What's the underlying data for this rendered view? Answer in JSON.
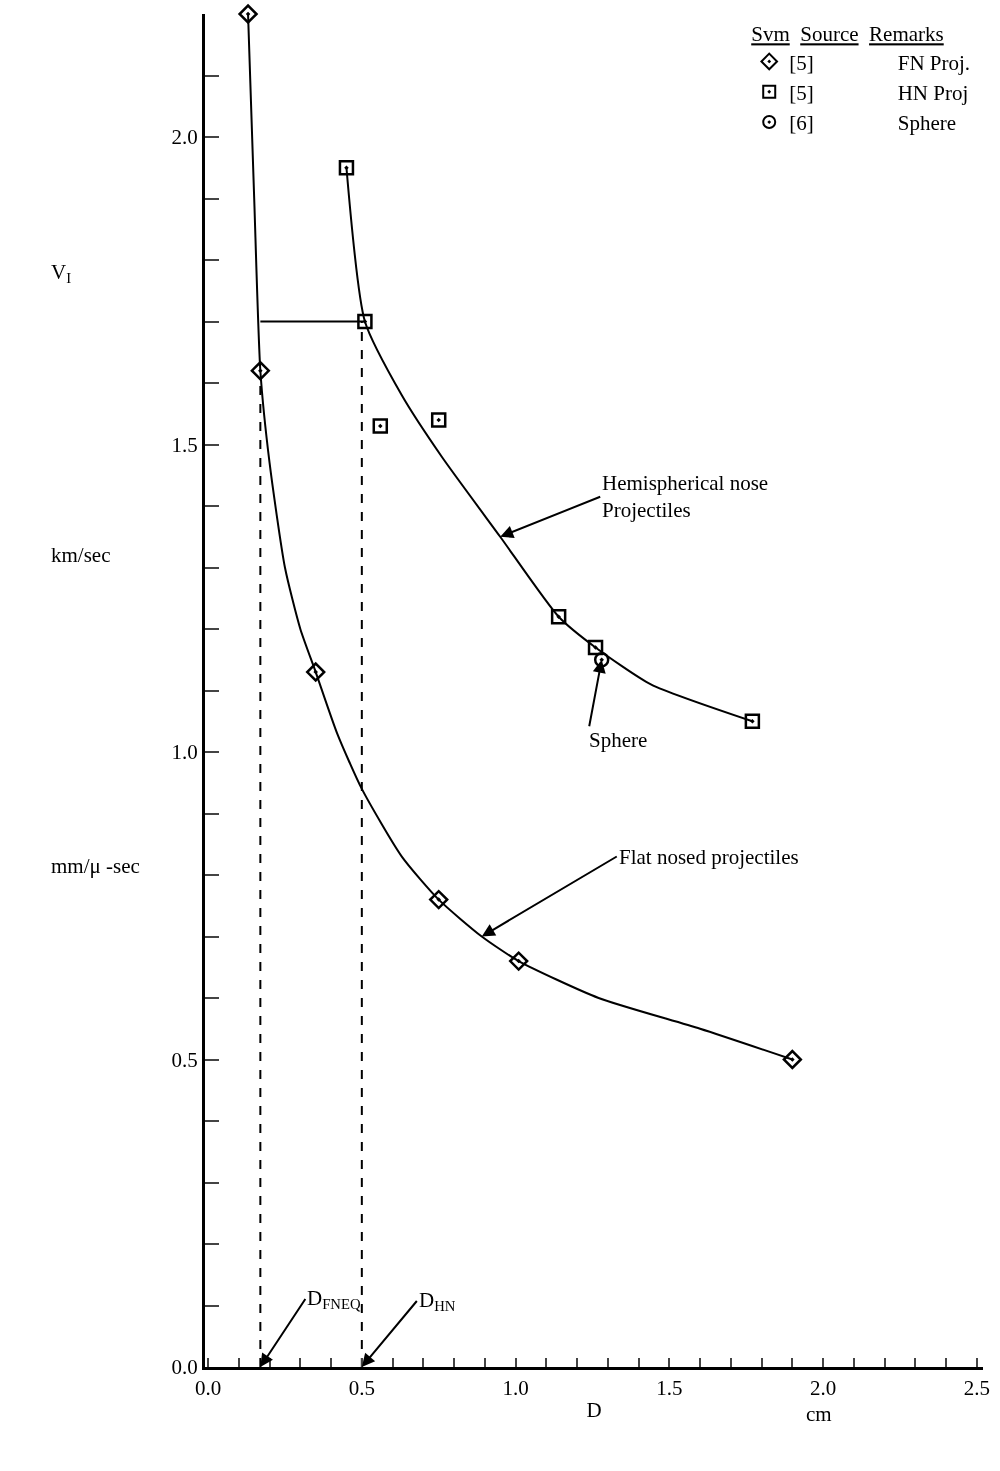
{
  "chart_data": {
    "type": "scatter",
    "xlabel": "D",
    "ylabel": "V$_{I}$",
    "legend_title": "Svm   Source   Remarks",
    "xlim": [
      -0.01,
      2.52
    ],
    "ylim": [
      0,
      2.2
    ],
    "xticks": [
      {
        "value": 0,
        "label": "0.0"
      },
      {
        "value": 0.1,
        "label": null
      },
      {
        "value": 0.2,
        "label": null
      },
      {
        "value": 0.3,
        "label": null
      },
      {
        "value": 0.4,
        "label": null
      },
      {
        "value": 0.5,
        "label": "0.5"
      },
      {
        "value": 0.6,
        "label": null
      },
      {
        "value": 0.7,
        "label": null
      },
      {
        "value": 0.8,
        "label": null
      },
      {
        "value": 0.9,
        "label": null
      },
      {
        "value": 1,
        "label": "1.0"
      },
      {
        "value": 1.1,
        "label": null
      },
      {
        "value": 1.2,
        "label": null
      },
      {
        "value": 1.3,
        "label": null
      },
      {
        "value": 1.4,
        "label": null
      },
      {
        "value": 1.5,
        "label": "1.5"
      },
      {
        "value": 1.6,
        "label": null
      },
      {
        "value": 1.7,
        "label": null
      },
      {
        "value": 1.8,
        "label": null
      },
      {
        "value": 1.9,
        "label": null
      },
      {
        "value": 2,
        "label": "2.0"
      },
      {
        "value": 2.1,
        "label": null
      },
      {
        "value": 2.2,
        "label": null
      },
      {
        "value": 2.3,
        "label": null
      },
      {
        "value": 2.4,
        "label": null
      },
      {
        "value": 2.5,
        "label": "2.5"
      }
    ],
    "yticks": [
      {
        "value": 0,
        "label": "0.0"
      },
      {
        "value": 0.1,
        "label": null
      },
      {
        "value": 0.2,
        "label": null
      },
      {
        "value": 0.3,
        "label": null
      },
      {
        "value": 0.4,
        "label": null
      },
      {
        "value": 0.5,
        "label": "0.5"
      },
      {
        "value": 0.6,
        "label": null
      },
      {
        "value": 0.7,
        "label": null
      },
      {
        "value": 0.8,
        "label": null
      },
      {
        "value": 0.9,
        "label": null
      },
      {
        "value": 1,
        "label": "1.0"
      },
      {
        "value": 1.1,
        "label": null
      },
      {
        "value": 1.2,
        "label": null
      },
      {
        "value": 1.3,
        "label": null
      },
      {
        "value": 1.4,
        "label": null
      },
      {
        "value": 1.5,
        "label": "1.5"
      },
      {
        "value": 1.6,
        "label": null
      },
      {
        "value": 1.7,
        "label": null
      },
      {
        "value": 1.8,
        "label": null
      },
      {
        "value": 1.9,
        "label": null
      },
      {
        "value": 2,
        "label": "2.0"
      },
      {
        "value": 2.1,
        "label": null
      }
    ],
    "legend": "top right",
    "series": [
      {
        "name": "[5]        FN Proj.",
        "marker": "diamond",
        "color": "#000000",
        "x": [
          0.13,
          0.17,
          0.35,
          0.75,
          1.01,
          1.9
        ],
        "values": [
          2.2,
          1.62,
          1.13,
          0.76,
          0.66,
          0.5
        ]
      },
      {
        "name": "[5]        HN Proj",
        "marker": "square",
        "color": "#000000",
        "x": [
          0.45,
          0.51,
          0.75,
          1.14,
          1.26,
          1.77
        ],
        "values": [
          1.95,
          1.7,
          1.54,
          1.22,
          1.17,
          1.05
        ]
      },
      {
        "name": "[6]        Sphere",
        "marker": "circle",
        "color": "#000000",
        "x": [
          1.28
        ],
        "values": [
          1.15
        ]
      },
      {
        "marker": "square",
        "color": "#000000",
        "x": [
          0.56
        ],
        "values": [
          1.53
        ]
      },
      {
        "type": "line",
        "marker": "none",
        "color": "#000000",
        "x": [
          0.13,
          0.15,
          0.17,
          0.2,
          0.25,
          0.3,
          0.35,
          0.42,
          0.5,
          0.63,
          0.75,
          0.89,
          1.01,
          1.27,
          1.6,
          1.9
        ],
        "values": [
          2.2,
          1.9,
          1.62,
          1.47,
          1.3,
          1.2,
          1.13,
          1.03,
          0.94,
          0.83,
          0.76,
          0.7,
          0.66,
          0.6,
          0.55,
          0.5
        ]
      },
      {
        "type": "line",
        "marker": "none",
        "color": "#000000",
        "x": [
          0.45,
          0.51,
          0.63,
          0.76,
          0.95,
          1.14,
          1.26,
          1.44,
          1.77
        ],
        "values": [
          1.95,
          1.7,
          1.58,
          1.48,
          1.35,
          1.22,
          1.17,
          1.11,
          1.05
        ]
      },
      {
        "type": "line",
        "marker": "none",
        "color": "#000000",
        "x": [
          0.17,
          0.51
        ],
        "values": [
          1.7,
          1.7
        ]
      },
      {
        "type": "line",
        "marker": "none",
        "line_style": "dashed",
        "color": "#000000",
        "x": [
          0.17,
          0.17
        ],
        "values": [
          0,
          1.6
        ]
      },
      {
        "type": "line",
        "marker": "none",
        "line_style": "dashed",
        "color": "#000000",
        "x": [
          0.5,
          0.5
        ],
        "values": [
          0,
          1.7
        ]
      }
    ],
    "annotations": [
      "km/sec",
      "mm/μ -sec",
      "cm",
      {
        "text": "D$_{FNEQ}$",
        "x": 0.17,
        "y": 0
      },
      {
        "text": "D$_{HN}$",
        "x": 0.5,
        "y": 0
      },
      {
        "text": "Hemispherical nose\nProjectiles",
        "x": 0.95,
        "y": 1.35
      },
      {
        "text": "Sphere",
        "x": 1.28,
        "y": 1.15
      },
      {
        "text": "Flat nosed projectiles",
        "x": 0.89,
        "y": 0.7
      }
    ]
  }
}
